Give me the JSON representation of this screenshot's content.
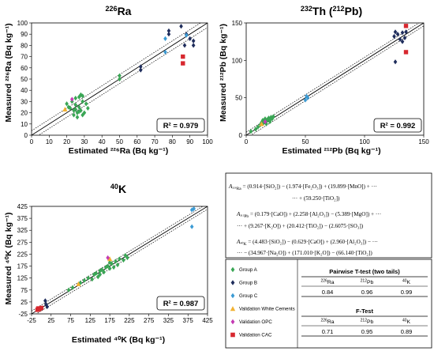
{
  "colors": {
    "group_a": "#3aa655",
    "group_b": "#1f2d5c",
    "group_c": "#3c9bd4",
    "white_cements": "#f2b233",
    "opc": "#c43bb3",
    "cac": "#d7282f"
  },
  "chart_data": [
    {
      "type": "scatter",
      "title_sup": "226",
      "title_main": "Ra",
      "xlabel": "Estimated ²²⁶Ra (Bq kg⁻¹)",
      "ylabel": "Measured ²²⁶Ra (Bq kg⁻¹)",
      "xlim": [
        0,
        100
      ],
      "ylim": [
        0,
        100
      ],
      "xticks": [
        "0",
        "10",
        "20",
        "30",
        "40",
        "50",
        "60",
        "70",
        "80",
        "90",
        "100"
      ],
      "yticks": [
        "0",
        "10",
        "20",
        "30",
        "40",
        "50",
        "60",
        "70",
        "80",
        "90",
        "100"
      ],
      "grid": false,
      "r2_label": "R² = 0.979",
      "fit": {
        "slope": 1.0,
        "intercept": 0
      },
      "band": 4,
      "series": [
        {
          "key": "group_a",
          "shape": "diamond",
          "points": [
            [
              20,
              28
            ],
            [
              21,
              25
            ],
            [
              22,
              24
            ],
            [
              23,
              30
            ],
            [
              24,
              22
            ],
            [
              24,
              18
            ],
            [
              25,
              27
            ],
            [
              25,
              33
            ],
            [
              26,
              20
            ],
            [
              26,
              16
            ],
            [
              27,
              34
            ],
            [
              27,
              25
            ],
            [
              28,
              36
            ],
            [
              28,
              22
            ],
            [
              29,
              30
            ],
            [
              29,
              18
            ],
            [
              30,
              20
            ],
            [
              31,
              28
            ],
            [
              32,
              24
            ],
            [
              27,
              21
            ],
            [
              25,
              23
            ],
            [
              50,
              50
            ],
            [
              50,
              53
            ],
            [
              29,
              35
            ]
          ]
        },
        {
          "key": "group_b",
          "shape": "diamond",
          "points": [
            [
              62,
              58
            ],
            [
              62,
              61
            ],
            [
              78,
              90
            ],
            [
              78,
              93
            ],
            [
              85,
              97
            ],
            [
              87,
              80
            ],
            [
              88,
              90
            ],
            [
              90,
              86
            ],
            [
              92,
              80
            ],
            [
              92,
              84
            ]
          ]
        },
        {
          "key": "group_c",
          "shape": "diamond",
          "points": [
            [
              76,
              74
            ],
            [
              76,
              86
            ],
            [
              88,
              89
            ]
          ]
        },
        {
          "key": "white_cements",
          "shape": "triangle",
          "points": [
            [
              19,
              23
            ]
          ]
        },
        {
          "key": "opc",
          "shape": "diamond",
          "points": [
            [
              23,
              32
            ]
          ]
        },
        {
          "key": "cac",
          "shape": "square",
          "points": [
            [
              86,
              64
            ],
            [
              86,
              70
            ]
          ]
        }
      ]
    },
    {
      "type": "scatter",
      "title_sup_a": "232",
      "title_main_a": "Th (",
      "title_sup_b": "212",
      "title_main_b": "Pb)",
      "xlabel": "Estimated ²¹²Pb (Bq kg⁻¹)",
      "ylabel": "Measured ²¹²Pb (Bq kg⁻¹)",
      "xlim": [
        0,
        150
      ],
      "ylim": [
        0,
        150
      ],
      "xticks": [
        "0",
        "50",
        "100",
        "150"
      ],
      "yticks": [
        "0",
        "50",
        "100",
        "150"
      ],
      "grid": false,
      "r2_label": "R² = 0.992",
      "fit": {
        "slope": 1.0,
        "intercept": 0
      },
      "band": 4,
      "series": [
        {
          "key": "group_a",
          "shape": "diamond",
          "points": [
            [
              4,
              5
            ],
            [
              8,
              8
            ],
            [
              10,
              11
            ],
            [
              12,
              14
            ],
            [
              13,
              17
            ],
            [
              14,
              20
            ],
            [
              15,
              18
            ],
            [
              16,
              22
            ],
            [
              17,
              19
            ],
            [
              18,
              21
            ],
            [
              19,
              23
            ],
            [
              20,
              20
            ],
            [
              21,
              24
            ],
            [
              22,
              22
            ],
            [
              23,
              25
            ],
            [
              14,
              15
            ],
            [
              17,
              15
            ],
            [
              20,
              18
            ]
          ]
        },
        {
          "key": "group_b",
          "shape": "diamond",
          "points": [
            [
              125,
              132
            ],
            [
              126,
              138
            ],
            [
              126,
              98
            ],
            [
              128,
              135
            ],
            [
              130,
              128
            ],
            [
              132,
              125
            ],
            [
              132,
              137
            ],
            [
              134,
              130
            ],
            [
              135,
              138
            ]
          ]
        },
        {
          "key": "group_c",
          "shape": "diamond",
          "points": [
            [
              50,
              47
            ],
            [
              51,
              52
            ],
            [
              52,
              50
            ]
          ]
        },
        {
          "key": "white_cements",
          "shape": "triangle",
          "points": [
            [
              13,
              15
            ]
          ]
        },
        {
          "key": "opc",
          "shape": "diamond",
          "points": [
            [
              16,
              18
            ]
          ]
        },
        {
          "key": "cac",
          "shape": "square",
          "points": [
            [
              135,
              146
            ],
            [
              135,
              111
            ]
          ]
        }
      ]
    },
    {
      "type": "scatter",
      "title_sup": "40",
      "title_main": "K",
      "xlabel": "Estimated ⁴⁰K (Bq kg⁻¹)",
      "ylabel": "Measured ⁴⁰K (Bq kg⁻¹)",
      "xlim": [
        -25,
        425
      ],
      "ylim": [
        -25,
        425
      ],
      "xticks": [
        "-25",
        "25",
        "75",
        "125",
        "175",
        "225",
        "275",
        "325",
        "375",
        "425"
      ],
      "yticks": [
        "-25",
        "25",
        "75",
        "125",
        "175",
        "225",
        "275",
        "325",
        "375",
        "425"
      ],
      "grid": false,
      "r2_label": "R² = 0.987",
      "fit": {
        "slope": 1.0,
        "intercept": 0
      },
      "band": 12,
      "series": [
        {
          "key": "group_a",
          "shape": "diamond",
          "points": [
            [
              70,
              75
            ],
            [
              80,
              85
            ],
            [
              100,
              105
            ],
            [
              110,
              115
            ],
            [
              120,
              125
            ],
            [
              135,
              140
            ],
            [
              140,
              145
            ],
            [
              145,
              130
            ],
            [
              150,
              155
            ],
            [
              155,
              160
            ],
            [
              160,
              150
            ],
            [
              165,
              170
            ],
            [
              170,
              175
            ],
            [
              175,
              165
            ],
            [
              180,
              185
            ],
            [
              185,
              170
            ],
            [
              190,
              195
            ],
            [
              195,
              180
            ],
            [
              200,
              205
            ],
            [
              210,
              200
            ],
            [
              215,
              220
            ],
            [
              220,
              210
            ],
            [
              150,
              140
            ],
            [
              130,
              120
            ],
            [
              175,
              190
            ]
          ]
        },
        {
          "key": "group_b",
          "shape": "diamond",
          "points": [
            [
              10,
              30
            ],
            [
              12,
              15
            ],
            [
              15,
              5
            ]
          ]
        },
        {
          "key": "group_c",
          "shape": "diamond",
          "points": [
            [
              385,
              410
            ],
            [
              390,
              415
            ],
            [
              385,
              340
            ]
          ]
        },
        {
          "key": "white_cements",
          "shape": "triangle",
          "points": [
            [
              95,
              100
            ],
            [
              175,
              205
            ]
          ]
        },
        {
          "key": "opc",
          "shape": "diamond",
          "points": [
            [
              170,
              210
            ]
          ]
        },
        {
          "key": "cac",
          "shape": "square",
          "points": [
            [
              -10,
              -8
            ],
            [
              -5,
              -5
            ],
            [
              0,
              0
            ],
            [
              -8,
              -2
            ]
          ]
        }
      ]
    }
  ],
  "equations": {
    "ra_lhs": "A",
    "ra_lhs_sub": "²²⁶Ra",
    "ra_line1": " = (0.914·[SiO₂]) − (1.974·[Fe₂O₃]) + (19.899·[MnO]) + ···",
    "ra_line2": "··· + (59.250·[TiO₂])",
    "pb_lhs_sub": "²¹²Pb",
    "pb_line1": " = (0.179·[CaO]) + (2.258·[Al₂O₃]) − (5.389·[MgO]) + ···",
    "pb_line2": "··· + (9.267·[K₂O]) + (20.412·[TiO₂]) − (2.6075·[SO₃])",
    "k_lhs_sub": "⁴⁰K",
    "k_line1": " = (4.483·[SiO₂]) − (0.629·[CaO]) + (2.960·[Al₂O₃]) − ···",
    "k_line2": "··· − (34.967·[Na₂O]) + (171.010·[K₂O]) − (66.140·[TiO₂])"
  },
  "legend": [
    {
      "label": "Group A",
      "key": "group_a",
      "shape": "diamond"
    },
    {
      "label": "Group B",
      "key": "group_b",
      "shape": "diamond"
    },
    {
      "label": "Group C",
      "key": "group_c",
      "shape": "diamond"
    },
    {
      "label": "Validation White Cements",
      "key": "white_cements",
      "shape": "triangle"
    },
    {
      "label": "Validation OPC",
      "key": "opc",
      "shape": "diamond"
    },
    {
      "label": "Validation CAC",
      "key": "cac",
      "shape": "square"
    }
  ],
  "ttest": {
    "title": "Pairwise T-test (two tails)",
    "headers": [
      {
        "sup": "226",
        "main": "Ra"
      },
      {
        "sup": "212",
        "main": "Pb"
      },
      {
        "sup": "40",
        "main": "K"
      }
    ],
    "values": [
      "0.84",
      "0.96",
      "0.99"
    ]
  },
  "ftest": {
    "title": "F-Test",
    "headers": [
      {
        "sup": "226",
        "main": "Ra"
      },
      {
        "sup": "212",
        "main": "Pb"
      },
      {
        "sup": "40",
        "main": "K"
      }
    ],
    "values": [
      "0.71",
      "0.95",
      "0.89"
    ]
  }
}
